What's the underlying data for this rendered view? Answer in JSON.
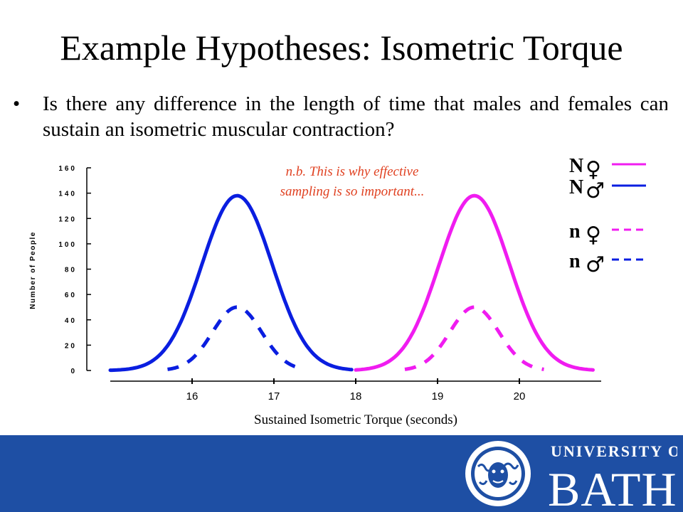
{
  "slide": {
    "title": "Example Hypotheses: Isometric Torque",
    "bullet_marker": "•",
    "bullet": "Is there any difference in the length of time that males and females can sustain an isometric muscular contraction?",
    "note_line1": "n.b. This is why effective",
    "note_line2": "sampling is so important..."
  },
  "colors": {
    "male": "#0a1ee0",
    "female": "#f01cf0",
    "note": "#e04020",
    "footer": "#1e4fa4"
  },
  "legend": [
    {
      "letter": "N",
      "symbol": "♀",
      "color": "#f01cf0",
      "dashed": false
    },
    {
      "letter": "N",
      "symbol": "♂",
      "color": "#0a1ee0",
      "dashed": false
    },
    {
      "letter": "n",
      "symbol": "♀",
      "color": "#f01cf0",
      "dashed": true
    },
    {
      "letter": "n",
      "symbol": "♂",
      "color": "#0a1ee0",
      "dashed": true
    }
  ],
  "chart_data": {
    "type": "line",
    "xlabel": "Sustained Isometric Torque (seconds)",
    "ylabel": "Number of People",
    "xticks": [
      "16",
      "17",
      "18",
      "19",
      "20"
    ],
    "xlim": [
      15,
      21
    ],
    "yticks": [
      "0",
      "20",
      "40",
      "60",
      "80",
      "100",
      "120",
      "140",
      "160"
    ],
    "ylim": [
      0,
      160
    ],
    "series": [
      {
        "style": "solid",
        "color": "#0a1ee0",
        "mean": 16.55,
        "sd": 0.43,
        "peak": 138,
        "x_range": [
          15.0,
          17.95
        ]
      },
      {
        "style": "solid",
        "color": "#f01cf0",
        "mean": 19.45,
        "sd": 0.43,
        "peak": 138,
        "x_range": [
          18.0,
          20.9
        ]
      },
      {
        "style": "dashed",
        "color": "#0a1ee0",
        "mean": 16.55,
        "sd": 0.3,
        "peak": 50,
        "x_range": [
          15.7,
          17.3
        ]
      },
      {
        "style": "dashed",
        "color": "#f01cf0",
        "mean": 19.45,
        "sd": 0.3,
        "peak": 50,
        "x_range": [
          18.6,
          20.3
        ]
      }
    ]
  },
  "footer": {
    "university_label": "UNIVERSITY OF",
    "name": "BATH"
  }
}
